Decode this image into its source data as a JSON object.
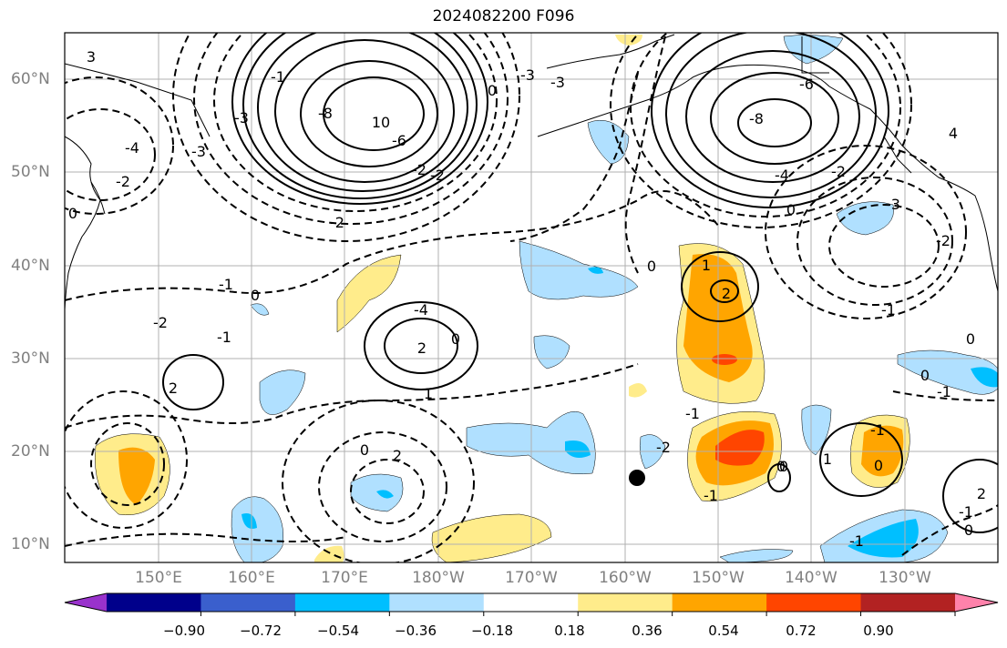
{
  "title": "2024082200 F096",
  "lat_labels": [
    "60°N",
    "50°N",
    "40°N",
    "30°N",
    "20°N",
    "10°N"
  ],
  "lon_labels": [
    "150°E",
    "160°E",
    "170°E",
    "180°W",
    "170°W",
    "160°W",
    "150°W",
    "140°W",
    "130°W"
  ],
  "colorbar": {
    "ticks": [
      "−0.90",
      "−0.72",
      "−0.54",
      "−0.36",
      "−0.18",
      "0.18",
      "0.36",
      "0.54",
      "0.72",
      "0.90"
    ],
    "colors": [
      "#9932cc",
      "#00008b",
      "#3a5fcd",
      "#00bfff",
      "#b0e0ff",
      "#ffffff",
      "#ffec8b",
      "#ffa500",
      "#ff4500",
      "#b22222",
      "#ff82ab"
    ]
  },
  "contour_labels": [
    "3",
    "-4",
    "-3",
    "-2",
    "0",
    "-1",
    "-3",
    "-8",
    "10",
    "-6",
    "-2",
    "-2",
    "-2",
    "-1",
    "0",
    "-2",
    "-1",
    "2",
    "2",
    "0",
    "1",
    "-4",
    "-3",
    "0",
    "-3",
    "-6",
    "-8",
    "-4",
    "-2",
    "0",
    "0",
    "1",
    "2",
    "0",
    "-3",
    "-2",
    "-1",
    "0",
    "-1",
    "-1",
    "-2",
    "-1",
    "0",
    "2",
    "0",
    "-1",
    "0",
    "-1",
    "0",
    "1",
    "2",
    "0",
    "-1",
    "4"
  ]
}
